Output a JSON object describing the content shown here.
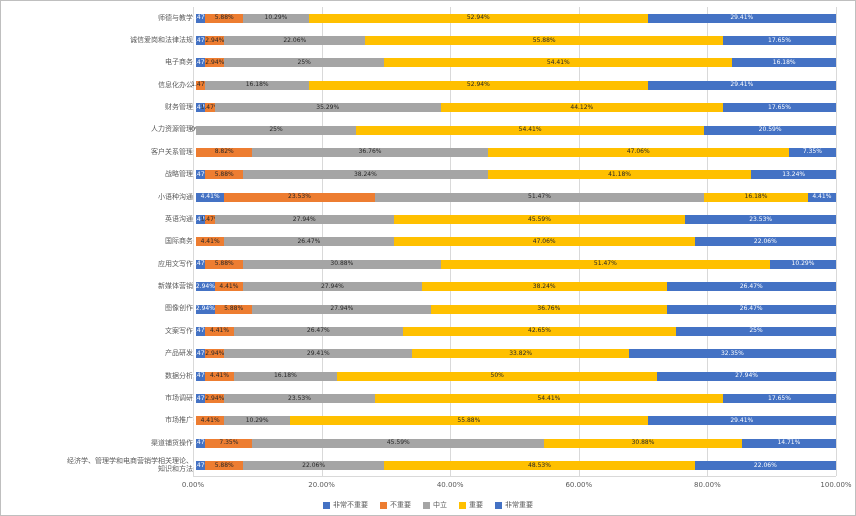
{
  "figure": {
    "background": "#ffffff",
    "border_color": "#bfbfbf",
    "gridline_color": "#d9d9d9",
    "text_color": "#595959"
  },
  "chart_data": {
    "type": "bar",
    "orientation": "horizontal",
    "stacked": true,
    "unit": "percent",
    "title": "",
    "xlabel": "",
    "ylabel": "",
    "categories": [
      "师德与教学",
      "诚信爱岗和法律法规",
      "电子商务",
      "信息化办公",
      "财务管理",
      "人力资源管理",
      "客户关系管理",
      "战略管理",
      "小语种沟通",
      "英语沟通",
      "国际商务",
      "应用文写作",
      "新媒体营销",
      "图像创作",
      "文案写作",
      "产品研发",
      "数据分析",
      "市场调研",
      "市场推广",
      "渠道铺货操作",
      "经济学、管理学和电商营销学相关理论、\n知识和方法"
    ],
    "series": [
      {
        "name": "非常不重要",
        "color": "#4472C4",
        "label_color": "#ffffff",
        "values": [
          1.47,
          1.47,
          1.47,
          0,
          1.47,
          0,
          0,
          1.47,
          4.41,
          1.47,
          0,
          1.47,
          2.94,
          2.94,
          1.47,
          1.47,
          1.47,
          1.47,
          0,
          1.47,
          1.47
        ]
      },
      {
        "name": "不重要",
        "color": "#ED7D31",
        "label_color": "#262626",
        "values": [
          5.88,
          2.94,
          2.94,
          1.47,
          1.47,
          0,
          8.82,
          5.88,
          23.53,
          1.47,
          4.41,
          5.88,
          4.41,
          5.88,
          4.41,
          2.94,
          4.41,
          2.94,
          4.41,
          7.35,
          5.88
        ]
      },
      {
        "name": "中立",
        "color": "#A5A5A5",
        "label_color": "#262626",
        "values": [
          10.29,
          22.06,
          25,
          16.18,
          35.29,
          25,
          36.76,
          38.24,
          51.47,
          27.94,
          26.47,
          30.88,
          27.94,
          27.94,
          26.47,
          29.41,
          16.18,
          23.53,
          10.29,
          45.59,
          22.06
        ]
      },
      {
        "name": "重要",
        "color": "#FFC000",
        "label_color": "#262626",
        "values": [
          52.94,
          55.88,
          54.41,
          52.94,
          44.12,
          54.41,
          47.06,
          41.18,
          16.18,
          45.59,
          47.06,
          51.47,
          38.24,
          36.76,
          42.65,
          33.82,
          50,
          54.41,
          55.88,
          30.88,
          48.53
        ]
      },
      {
        "name": "非常重要",
        "color": "#4472C4",
        "label_color": "#ffffff",
        "values": [
          29.41,
          17.65,
          16.18,
          29.41,
          17.65,
          20.59,
          7.35,
          13.24,
          4.41,
          23.53,
          22.06,
          10.29,
          26.47,
          26.47,
          25,
          32.35,
          27.94,
          17.65,
          29.41,
          14.71,
          22.06
        ]
      }
    ],
    "x_axis": {
      "ticks": [
        "0.00%",
        "20.00%",
        "40.00%",
        "60.00%",
        "80.00%",
        "100.00%"
      ],
      "range": [
        0,
        100
      ],
      "gridlines": true
    },
    "legend": {
      "position": "bottom",
      "items": [
        "非常不重要",
        "不重要",
        "中立",
        "重要",
        "非常重要"
      ]
    }
  }
}
